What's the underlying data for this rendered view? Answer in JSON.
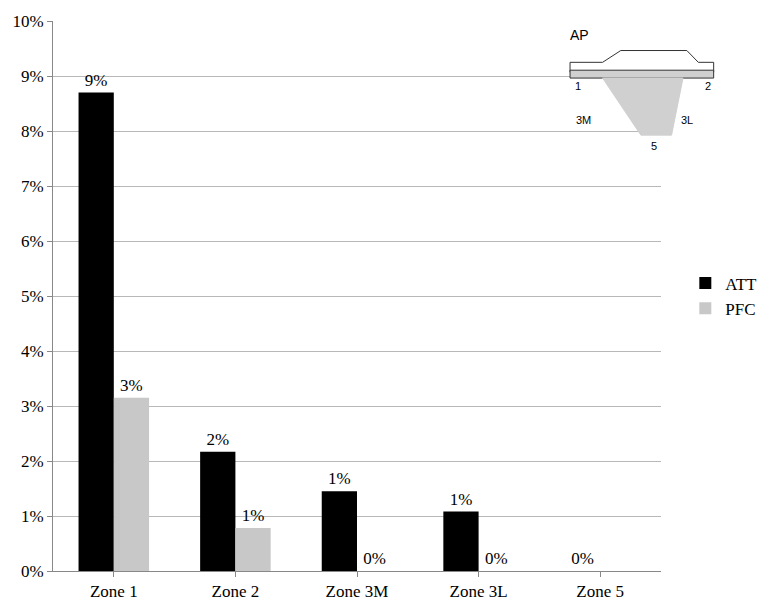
{
  "chart_data": {
    "type": "bar",
    "categories": [
      "Zone 1",
      "Zone 2",
      "Zone 3M",
      "Zone 3L",
      "Zone 5"
    ],
    "series": [
      {
        "name": "ATT",
        "color": "#000000",
        "values": [
          8.7,
          2.17,
          1.45,
          1.08,
          0
        ],
        "value_labels": [
          "9%",
          "2%",
          "1%",
          "1%",
          "0%"
        ]
      },
      {
        "name": "PFC",
        "color": "#c8c8c8",
        "values": [
          3.15,
          0.78,
          0,
          0,
          null
        ],
        "value_labels": [
          "3%",
          "1%",
          "0%",
          "0%",
          null
        ]
      }
    ],
    "ylim": [
      0,
      10
    ],
    "yticks": [
      {
        "value": 0,
        "label": "0%"
      },
      {
        "value": 1,
        "label": "1%"
      },
      {
        "value": 2,
        "label": "2%"
      },
      {
        "value": 3,
        "label": "3%"
      },
      {
        "value": 4,
        "label": "4%"
      },
      {
        "value": 5,
        "label": "5%"
      },
      {
        "value": 6,
        "label": "6%"
      },
      {
        "value": 7,
        "label": "7%"
      },
      {
        "value": 8,
        "label": "8%"
      },
      {
        "value": 9,
        "label": "9%"
      },
      {
        "value": 10,
        "label": "10%"
      }
    ],
    "grid": true,
    "legend": "right",
    "data_labels": true,
    "inset": {
      "title": "AP",
      "labels": [
        "1",
        "2",
        "3M",
        "3L",
        "5"
      ]
    }
  }
}
